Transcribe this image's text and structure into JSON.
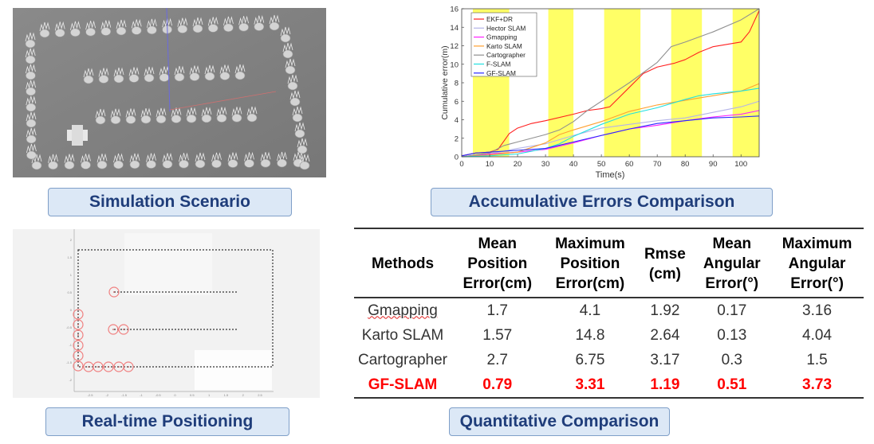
{
  "captions": {
    "simulation": "Simulation Scenario",
    "errors": "Accumulative Errors Comparison",
    "realtime": "Real-time Positioning",
    "quantitative": "Quantitative Comparison"
  },
  "realtime_plot": {
    "x_ticks": [
      "-2.5",
      "-2",
      "-1.5",
      "-1",
      "-0.5",
      "0",
      "0.5",
      "1",
      "1.5",
      "2",
      "2.5"
    ],
    "y_ticks": [
      "2",
      "1.5",
      "1",
      "0.5",
      "0",
      "-0.5",
      "-1",
      "-1.5",
      "-2"
    ]
  },
  "chart_data": {
    "type": "line",
    "xlabel": "Time(s)",
    "ylabel": "Cumulative error(m)",
    "xlim": [
      0,
      106.5
    ],
    "ylim": [
      0,
      16
    ],
    "x_ticks": [
      0,
      10,
      20,
      30,
      40,
      50,
      60,
      70,
      80,
      90,
      100
    ],
    "y_ticks": [
      0,
      2,
      4,
      6,
      8,
      10,
      12,
      14,
      16
    ],
    "legend_position": "top-left",
    "highlight_bands": [
      [
        4,
        17
      ],
      [
        31,
        40
      ],
      [
        51,
        64
      ],
      [
        75,
        86
      ],
      [
        97,
        106.5
      ]
    ],
    "highlight_color": "#ffff66",
    "series": [
      {
        "name": "EKF+DR",
        "color": "#ff2020",
        "x": [
          0,
          5,
          10,
          13,
          17,
          20,
          25,
          30,
          40,
          45,
          50,
          53,
          60,
          65,
          70,
          76,
          80,
          85,
          90,
          100,
          103,
          106.5
        ],
        "y": [
          0.1,
          0.4,
          0.5,
          0.8,
          2.5,
          3.1,
          3.6,
          3.9,
          4.6,
          5.0,
          5.2,
          5.4,
          7.5,
          9.0,
          9.7,
          10.1,
          10.5,
          11.3,
          11.9,
          12.4,
          13.5,
          15.8
        ]
      },
      {
        "name": "Hector SLAM",
        "color": "#b4b4e8",
        "x": [
          0,
          10,
          20,
          30,
          40,
          50,
          60,
          70,
          80,
          90,
          100,
          106.5
        ],
        "y": [
          0,
          0.3,
          0.9,
          1.4,
          2.3,
          3.1,
          3.5,
          3.9,
          4.2,
          4.8,
          5.4,
          6.0
        ]
      },
      {
        "name": "Gmapping",
        "color": "#ff20ff",
        "x": [
          0,
          10,
          20,
          30,
          40,
          50,
          60,
          70,
          80,
          90,
          100,
          106.5
        ],
        "y": [
          0,
          0.3,
          0.5,
          0.8,
          1.5,
          2.3,
          3.0,
          3.4,
          3.9,
          4.3,
          4.6,
          5.0
        ]
      },
      {
        "name": "Karto SLAM",
        "color": "#ffa030",
        "x": [
          0,
          10,
          20,
          30,
          35,
          40,
          50,
          60,
          70,
          80,
          90,
          100,
          106.5
        ],
        "y": [
          0,
          0.2,
          0.5,
          1.5,
          2.4,
          2.9,
          3.8,
          4.9,
          5.6,
          6.1,
          6.6,
          7.1,
          7.9
        ]
      },
      {
        "name": "Cartographer",
        "color": "#909090",
        "x": [
          0,
          10,
          15,
          20,
          30,
          35,
          40,
          45,
          50,
          60,
          70,
          75,
          80,
          90,
          100,
          106.5
        ],
        "y": [
          0,
          0.4,
          1.2,
          1.6,
          2.4,
          2.9,
          3.8,
          5.0,
          6.0,
          8.0,
          10.2,
          11.9,
          12.4,
          13.5,
          14.8,
          16.0
        ]
      },
      {
        "name": "F-SLAM",
        "color": "#20e0e0",
        "x": [
          0,
          10,
          20,
          30,
          35,
          40,
          50,
          60,
          70,
          80,
          85,
          90,
          100,
          106.5
        ],
        "y": [
          0,
          0.1,
          0.3,
          0.9,
          1.4,
          2.2,
          3.5,
          4.6,
          5.3,
          6.2,
          6.6,
          6.8,
          7.1,
          7.4
        ]
      },
      {
        "name": "GF-SLAM",
        "color": "#2828ff",
        "x": [
          0,
          5,
          10,
          20,
          30,
          40,
          50,
          60,
          70,
          80,
          90,
          100,
          106.5
        ],
        "y": [
          0.1,
          0.4,
          0.5,
          0.7,
          0.9,
          1.6,
          2.3,
          3.0,
          3.6,
          3.9,
          4.2,
          4.3,
          4.4
        ]
      }
    ]
  },
  "table": {
    "headers": [
      [
        "Methods"
      ],
      [
        "Mean",
        "Position",
        "Error(cm)"
      ],
      [
        "Maximum",
        "Position",
        "Error(cm)"
      ],
      [
        "Rmse",
        "(cm)"
      ],
      [
        "Mean",
        "Angular",
        "Error(°)"
      ],
      [
        "Maximum",
        "Angular",
        "Error(°)"
      ]
    ],
    "rows": [
      {
        "method": "Gmapping",
        "values": [
          "1.7",
          "4.1",
          "1.92",
          "0.17",
          "3.16"
        ]
      },
      {
        "method": "Karto SLAM",
        "values": [
          "1.57",
          "14.8",
          "2.64",
          "0.13",
          "4.04"
        ]
      },
      {
        "method": "Cartographer",
        "values": [
          "2.7",
          "6.75",
          "3.17",
          "0.3",
          "1.5"
        ]
      },
      {
        "method": "GF-SLAM",
        "values": [
          "0.79",
          "3.31",
          "1.19",
          "0.51",
          "3.73"
        ],
        "highlight": true,
        "highlight_color": "#ff0000"
      }
    ]
  }
}
